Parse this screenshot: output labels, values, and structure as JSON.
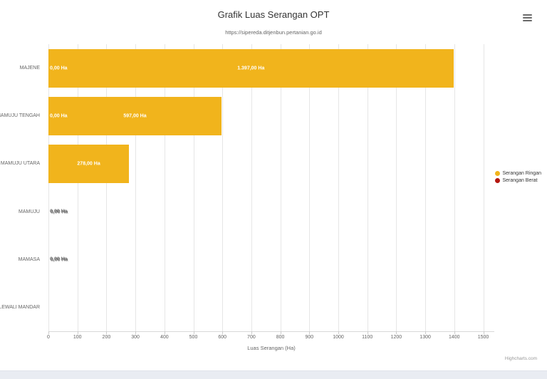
{
  "page": {
    "card_background": "#ffffff",
    "backdrop_color": "#e9ecf2"
  },
  "header": {
    "menu_icon": "hamburger-icon"
  },
  "chart_data": {
    "type": "bar",
    "orientation": "horizontal",
    "title": "Grafik Luas Serangan OPT",
    "subtitle": "https://sipereda.ditjenbun.pertanian.go.id",
    "categories": [
      "MAJENE",
      "MAMUJU TENGAH",
      "MAMUJU UTARA",
      "MAMUJU",
      "MAMASA",
      "POLEWALI MANDAR"
    ],
    "series": [
      {
        "name": "Serangan Ringan",
        "color": "#F1B41C",
        "values": [
          1397,
          597,
          278,
          0,
          0,
          null
        ],
        "data_labels": [
          "1.397,00 Ha",
          "597,00 Ha",
          "278,00 Ha",
          "0,00 Ha",
          "0,00 Ha",
          ""
        ]
      },
      {
        "name": "Serangan Berat",
        "color": "#B4170F",
        "values": [
          0,
          0,
          0,
          0,
          0,
          null
        ],
        "data_labels": [
          "0,00 Ha",
          "0,00 Ha",
          "",
          "0,00 Ha",
          "0,00 Ha",
          ""
        ]
      }
    ],
    "xlabel": "Luas Serangan (Ha)",
    "xlim": [
      0,
      1538
    ],
    "x_ticks": [
      0,
      100,
      200,
      300,
      400,
      500,
      600,
      700,
      800,
      900,
      1000,
      1100,
      1200,
      1300,
      1400,
      1500
    ],
    "grid": true,
    "legend_position": "right",
    "credits": "Highcharts.com"
  }
}
